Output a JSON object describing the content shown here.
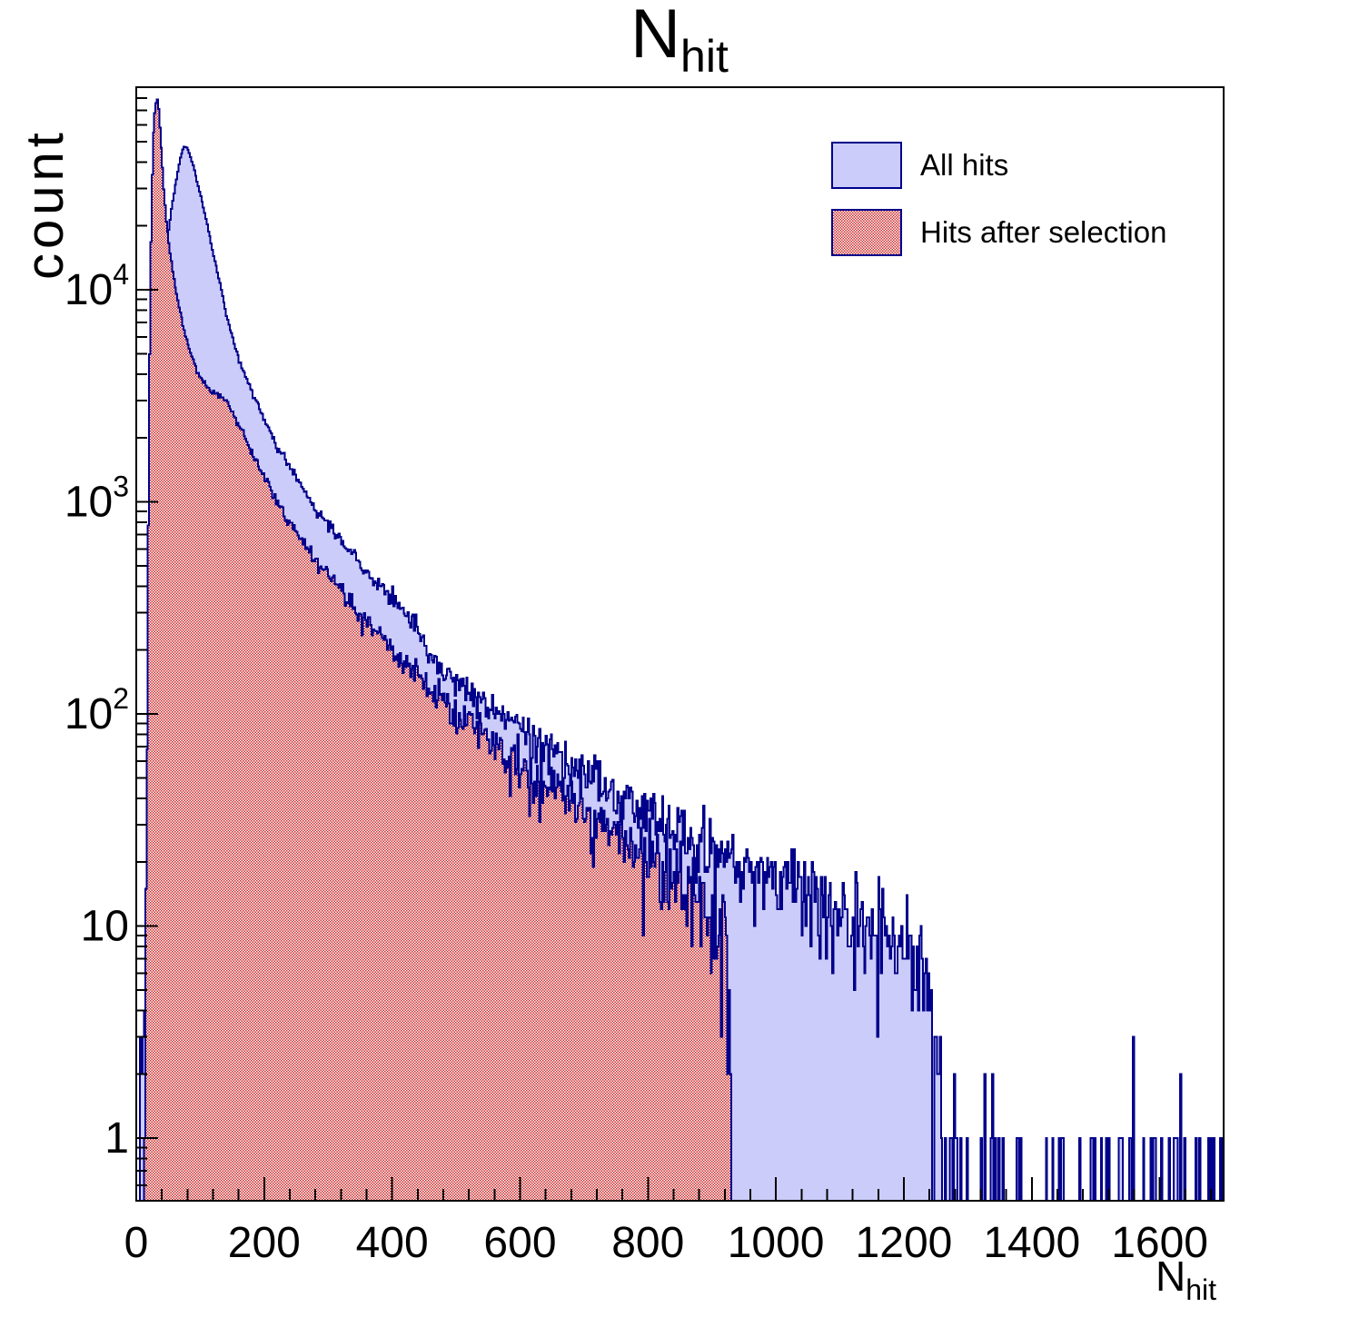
{
  "chart_data": {
    "type": "bar",
    "subtype": "step-histogram-log-y",
    "title": {
      "main": "N",
      "sub": "hit"
    },
    "xlabel": {
      "main": "N",
      "sub": "hit"
    },
    "ylabel": "count",
    "x_range": [
      0,
      1700
    ],
    "y_range": [
      0.5,
      90000
    ],
    "y_scale": "log",
    "grid": false,
    "bin_width": 2,
    "x_minor_step": 40,
    "x_ticks": [
      {
        "value": 0,
        "label": "0"
      },
      {
        "value": 200,
        "label": "200"
      },
      {
        "value": 400,
        "label": "400"
      },
      {
        "value": 600,
        "label": "600"
      },
      {
        "value": 800,
        "label": "800"
      },
      {
        "value": 1000,
        "label": "1000"
      },
      {
        "value": 1200,
        "label": "1200"
      },
      {
        "value": 1400,
        "label": "1400"
      },
      {
        "value": 1600,
        "label": "1600"
      }
    ],
    "y_ticks": [
      {
        "value": 1,
        "base": "1",
        "exp": ""
      },
      {
        "value": 10,
        "base": "10",
        "exp": ""
      },
      {
        "value": 100,
        "base": "10",
        "exp": "2"
      },
      {
        "value": 1000,
        "base": "10",
        "exp": "3"
      },
      {
        "value": 10000,
        "base": "10",
        "exp": "4"
      }
    ],
    "colors": {
      "line": "#00008b",
      "blue_fill": "#ccccfa",
      "red": "#cd2b2b",
      "axis": "#000000"
    },
    "noise": "poisson",
    "seed": 7,
    "legend": {
      "position": "top-right",
      "entries": [
        {
          "label": "All hits",
          "swatch": "solid"
        },
        {
          "label": "Hits after selection",
          "swatch": "checker"
        }
      ]
    },
    "series": [
      {
        "name": "All hits",
        "style": "solid",
        "peak": {
          "x": 75,
          "count": 47500
        },
        "envelope": [
          [
            2,
            0.4
          ],
          [
            6,
            1.5
          ],
          [
            10,
            3
          ],
          [
            14,
            6
          ],
          [
            18,
            15
          ],
          [
            22,
            40
          ],
          [
            26,
            130
          ],
          [
            30,
            450
          ],
          [
            34,
            1500
          ],
          [
            38,
            4000
          ],
          [
            42,
            8500
          ],
          [
            46,
            13500
          ],
          [
            50,
            18000
          ],
          [
            55,
            24000
          ],
          [
            60,
            30000
          ],
          [
            65,
            36000
          ],
          [
            70,
            43000
          ],
          [
            75,
            47500
          ],
          [
            80,
            46500
          ],
          [
            85,
            42500
          ],
          [
            90,
            37500
          ],
          [
            95,
            32500
          ],
          [
            100,
            28500
          ],
          [
            110,
            21000
          ],
          [
            120,
            15000
          ],
          [
            130,
            11000
          ],
          [
            141,
            7600
          ],
          [
            160,
            4700
          ],
          [
            180,
            3300
          ],
          [
            200,
            2450
          ],
          [
            213,
            2000
          ],
          [
            230,
            1620
          ],
          [
            250,
            1300
          ],
          [
            270,
            1060
          ],
          [
            283,
            900
          ],
          [
            300,
            780
          ],
          [
            320,
            660
          ],
          [
            340,
            560
          ],
          [
            354,
            480
          ],
          [
            380,
            400
          ],
          [
            400,
            345
          ],
          [
            430,
            280
          ],
          [
            460,
            190
          ],
          [
            495,
            148
          ],
          [
            540,
            115
          ],
          [
            580,
            94
          ],
          [
            620,
            77
          ],
          [
            660,
            63
          ],
          [
            700,
            53
          ],
          [
            740,
            45
          ],
          [
            778,
            38.5
          ],
          [
            820,
            32.5
          ],
          [
            860,
            27.5
          ],
          [
            900,
            23.5
          ],
          [
            940,
            20.5
          ],
          [
            980,
            18
          ],
          [
            1020,
            16
          ],
          [
            1060,
            14
          ],
          [
            1100,
            12.3
          ],
          [
            1140,
            10.8
          ],
          [
            1180,
            9.4
          ],
          [
            1210,
            8.2
          ],
          [
            1230,
            6.5
          ],
          [
            1245,
            2.2
          ],
          [
            1260,
            0.8
          ],
          [
            1300,
            0.3
          ],
          [
            1400,
            0.2
          ],
          [
            1500,
            0.17
          ],
          [
            1600,
            0.2
          ],
          [
            1680,
            0.35
          ],
          [
            1700,
            0.6
          ]
        ]
      },
      {
        "name": "Hits after selection",
        "style": "checker",
        "peak": {
          "x": 33,
          "count": 79000
        },
        "cutoff_x": 930,
        "envelope": [
          [
            11,
            0.5
          ],
          [
            13,
            2
          ],
          [
            15,
            10
          ],
          [
            17,
            80
          ],
          [
            19,
            800
          ],
          [
            21,
            5000
          ],
          [
            23,
            17000
          ],
          [
            25,
            35000
          ],
          [
            27,
            55000
          ],
          [
            29,
            68000
          ],
          [
            31,
            76000
          ],
          [
            33,
            79000
          ],
          [
            35,
            71000
          ],
          [
            37,
            58000
          ],
          [
            40,
            42000
          ],
          [
            43,
            30000
          ],
          [
            46,
            22500
          ],
          [
            50,
            17500
          ],
          [
            55,
            13500
          ],
          [
            60,
            10800
          ],
          [
            65,
            8900
          ],
          [
            70,
            7500
          ],
          [
            78,
            5900
          ],
          [
            86,
            4900
          ],
          [
            95,
            4200
          ],
          [
            105,
            3700
          ],
          [
            120,
            3300
          ],
          [
            141,
            3000
          ],
          [
            160,
            2300
          ],
          [
            180,
            1750
          ],
          [
            200,
            1330
          ],
          [
            213,
            1100
          ],
          [
            230,
            890
          ],
          [
            250,
            720
          ],
          [
            270,
            590
          ],
          [
            283,
            520
          ],
          [
            300,
            450
          ],
          [
            320,
            380
          ],
          [
            340,
            320
          ],
          [
            354,
            280
          ],
          [
            380,
            235
          ],
          [
            400,
            205
          ],
          [
            430,
            165
          ],
          [
            460,
            133
          ],
          [
            495,
            105
          ],
          [
            540,
            80
          ],
          [
            580,
            64
          ],
          [
            620,
            52
          ],
          [
            660,
            43
          ],
          [
            700,
            35
          ],
          [
            740,
            29
          ],
          [
            778,
            24
          ],
          [
            820,
            19.5
          ],
          [
            860,
            15.5
          ],
          [
            900,
            12
          ],
          [
            915,
            9
          ],
          [
            925,
            6
          ],
          [
            929,
            3
          ],
          [
            930,
            0
          ]
        ]
      }
    ]
  }
}
